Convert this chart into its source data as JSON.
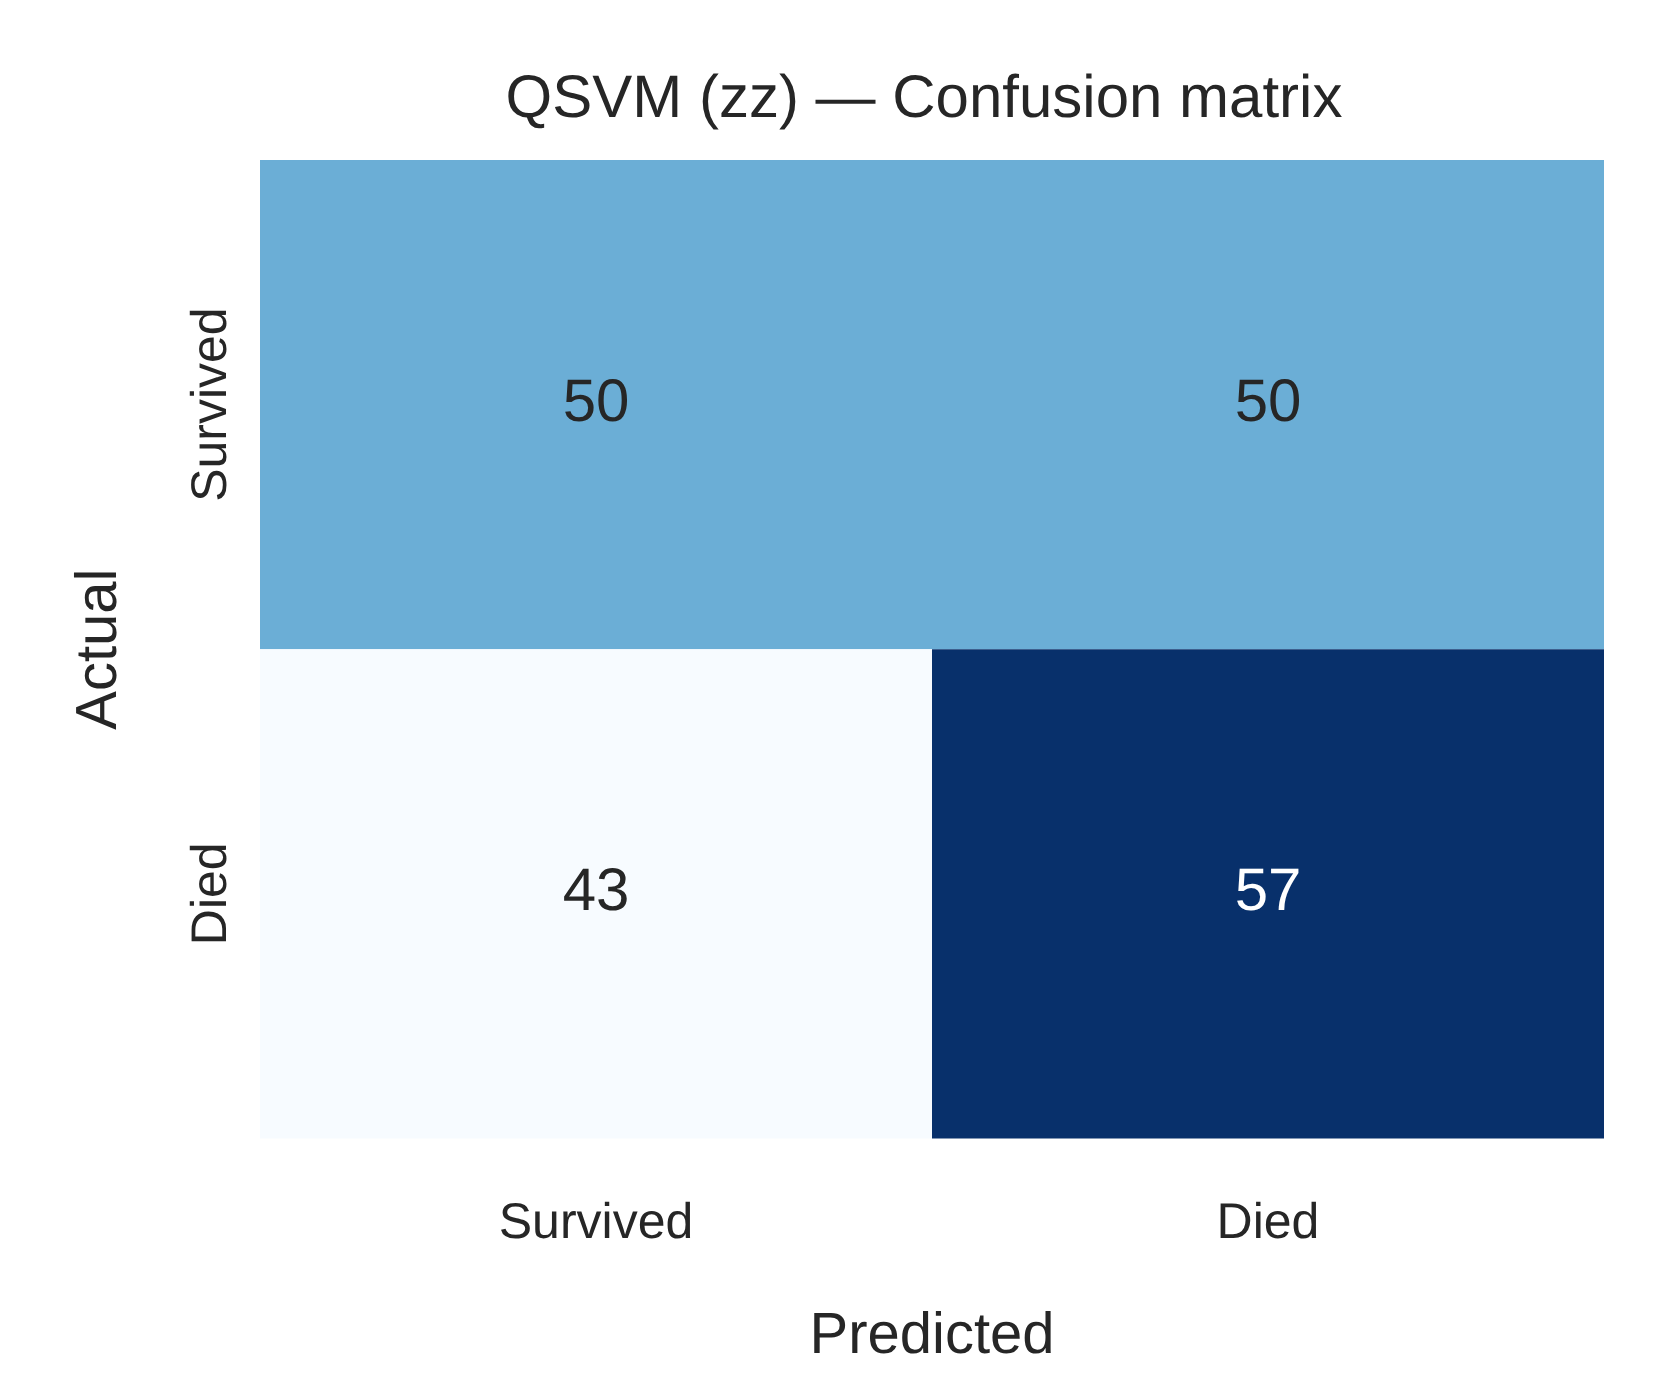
{
  "chart_data": {
    "type": "heatmap",
    "title": "QSVM (zz) — Confusion matrix",
    "xlabel": "Predicted",
    "ylabel": "Actual",
    "categories": [
      "Survived",
      "Died"
    ],
    "y_categories": [
      "Survived",
      "Died"
    ],
    "cells": [
      [
        50,
        50
      ],
      [
        43,
        57
      ]
    ],
    "data_labels": true
  }
}
